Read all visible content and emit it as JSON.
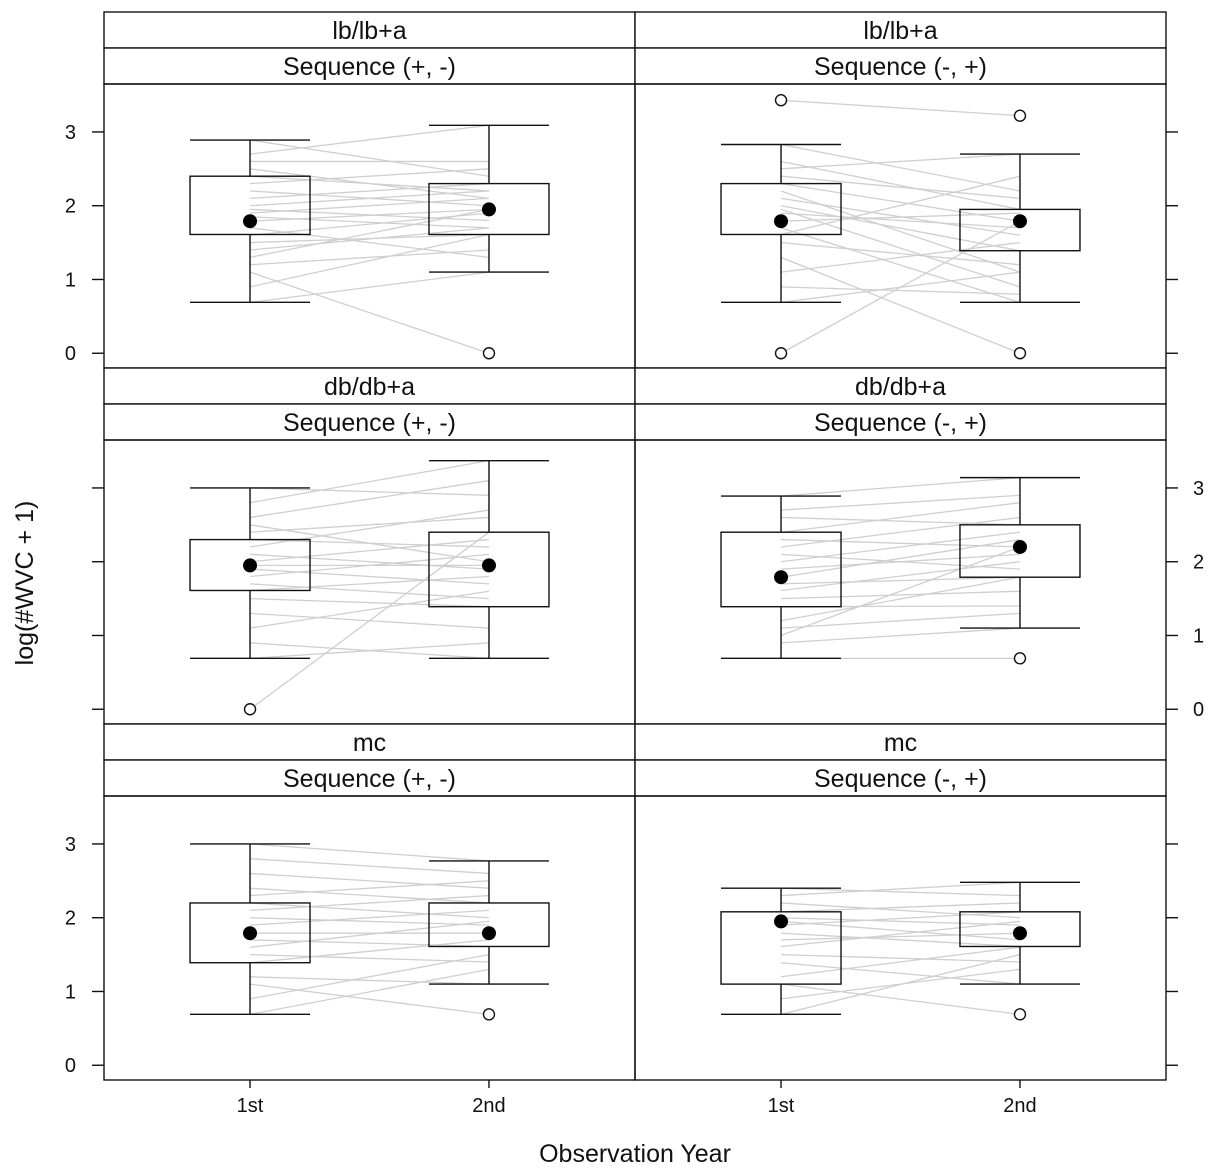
{
  "chart_data": {
    "type": "boxplot",
    "xlabel": "Observation Year",
    "ylabel": "log(#WVC + 1)",
    "ylim": [
      -0.2,
      3.65
    ],
    "yticks": [
      0,
      1,
      2,
      3
    ],
    "categories": [
      "1st",
      "2nd"
    ],
    "panels": [
      {
        "strip_top": "lb/lb+a",
        "strip_bottom": "Sequence (+, -)",
        "boxes": [
          {
            "category": "1st",
            "whisker_low": 0.69,
            "q1": 1.61,
            "median": 1.79,
            "q3": 2.4,
            "whisker_high": 2.89,
            "outliers": []
          },
          {
            "category": "2nd",
            "whisker_low": 1.1,
            "q1": 1.61,
            "median": 1.95,
            "q3": 2.3,
            "whisker_high": 3.09,
            "outliers": [
              0
            ]
          }
        ],
        "pairs": [
          [
            2.89,
            2.4
          ],
          [
            2.7,
            3.09
          ],
          [
            2.6,
            2.6
          ],
          [
            2.4,
            2.2
          ],
          [
            2.3,
            2.5
          ],
          [
            2.2,
            2.0
          ],
          [
            2.1,
            2.3
          ],
          [
            2.0,
            2.2
          ],
          [
            1.95,
            1.8
          ],
          [
            1.9,
            2.1
          ],
          [
            1.85,
            1.7
          ],
          [
            1.79,
            1.95
          ],
          [
            1.6,
            1.9
          ],
          [
            1.5,
            1.61
          ],
          [
            1.4,
            1.7
          ],
          [
            1.3,
            1.95
          ],
          [
            1.2,
            1.4
          ],
          [
            1.1,
            0
          ],
          [
            0.9,
            1.61
          ],
          [
            0.69,
            1.1
          ],
          [
            1.7,
            1.3
          ],
          [
            2.5,
            2.1
          ]
        ]
      },
      {
        "strip_top": "lb/lb+a",
        "strip_bottom": "Sequence (-, +)",
        "boxes": [
          {
            "category": "1st",
            "whisker_low": 0.69,
            "q1": 1.61,
            "median": 1.79,
            "q3": 2.3,
            "whisker_high": 2.83,
            "outliers": [
              3.43,
              0
            ]
          },
          {
            "category": "2nd",
            "whisker_low": 0.69,
            "q1": 1.39,
            "median": 1.79,
            "q3": 1.95,
            "whisker_high": 2.7,
            "outliers": [
              3.22,
              0
            ]
          }
        ],
        "pairs": [
          [
            3.43,
            3.22
          ],
          [
            2.83,
            2.2
          ],
          [
            2.6,
            1.95
          ],
          [
            2.5,
            2.7
          ],
          [
            2.3,
            1.79
          ],
          [
            2.2,
            1.1
          ],
          [
            2.1,
            1.6
          ],
          [
            2.0,
            1.39
          ],
          [
            1.95,
            0.9
          ],
          [
            1.9,
            1.7
          ],
          [
            1.79,
            1.9
          ],
          [
            1.7,
            0.69
          ],
          [
            1.61,
            2.4
          ],
          [
            1.5,
            1.2
          ],
          [
            1.3,
            0
          ],
          [
            1.1,
            1.5
          ],
          [
            0.9,
            0.8
          ],
          [
            0.69,
            1.1
          ],
          [
            0,
            1.79
          ],
          [
            2.4,
            2.1
          ]
        ]
      },
      {
        "strip_top": "db/db+a",
        "strip_bottom": "Sequence (+, -)",
        "boxes": [
          {
            "category": "1st",
            "whisker_low": 0.69,
            "q1": 1.61,
            "median": 1.95,
            "q3": 2.3,
            "whisker_high": 3.0,
            "outliers": [
              0
            ]
          },
          {
            "category": "2nd",
            "whisker_low": 0.69,
            "q1": 1.39,
            "median": 1.95,
            "q3": 2.4,
            "whisker_high": 3.37,
            "outliers": []
          }
        ],
        "pairs": [
          [
            3.0,
            2.9
          ],
          [
            2.8,
            3.37
          ],
          [
            2.6,
            3.1
          ],
          [
            2.4,
            2.6
          ],
          [
            2.3,
            2.2
          ],
          [
            2.2,
            2.7
          ],
          [
            2.1,
            1.9
          ],
          [
            2.0,
            2.3
          ],
          [
            1.95,
            1.95
          ],
          [
            1.9,
            1.7
          ],
          [
            1.8,
            2.1
          ],
          [
            1.7,
            1.5
          ],
          [
            1.61,
            1.8
          ],
          [
            1.5,
            1.39
          ],
          [
            1.3,
            1.1
          ],
          [
            1.1,
            1.6
          ],
          [
            0.9,
            0.69
          ],
          [
            0.69,
            0.9
          ],
          [
            0,
            2.4
          ],
          [
            2.5,
            2.0
          ]
        ]
      },
      {
        "strip_top": "db/db+a",
        "strip_bottom": "Sequence (-, +)",
        "boxes": [
          {
            "category": "1st",
            "whisker_low": 0.69,
            "q1": 1.39,
            "median": 1.79,
            "q3": 2.4,
            "whisker_high": 2.89,
            "outliers": []
          },
          {
            "category": "2nd",
            "whisker_low": 1.1,
            "q1": 1.79,
            "median": 2.2,
            "q3": 2.5,
            "whisker_high": 3.14,
            "outliers": [
              0.69
            ]
          }
        ],
        "pairs": [
          [
            2.89,
            3.14
          ],
          [
            2.7,
            2.9
          ],
          [
            2.6,
            2.5
          ],
          [
            2.4,
            2.8
          ],
          [
            2.3,
            2.2
          ],
          [
            2.2,
            2.6
          ],
          [
            2.1,
            1.9
          ],
          [
            2.0,
            2.4
          ],
          [
            1.9,
            2.1
          ],
          [
            1.79,
            2.3
          ],
          [
            1.7,
            1.79
          ],
          [
            1.61,
            2.0
          ],
          [
            1.5,
            1.6
          ],
          [
            1.39,
            1.4
          ],
          [
            1.2,
            1.79
          ],
          [
            1.1,
            1.3
          ],
          [
            0.9,
            1.1
          ],
          [
            0.69,
            0.69
          ],
          [
            1.0,
            2.2
          ]
        ]
      },
      {
        "strip_top": "mc",
        "strip_bottom": "Sequence (+, -)",
        "boxes": [
          {
            "category": "1st",
            "whisker_low": 0.69,
            "q1": 1.39,
            "median": 1.79,
            "q3": 2.2,
            "whisker_high": 3.0,
            "outliers": []
          },
          {
            "category": "2nd",
            "whisker_low": 1.1,
            "q1": 1.61,
            "median": 1.79,
            "q3": 2.2,
            "whisker_high": 2.77,
            "outliers": [
              0.69
            ]
          }
        ],
        "pairs": [
          [
            3.0,
            2.77
          ],
          [
            2.8,
            2.6
          ],
          [
            2.6,
            2.4
          ],
          [
            2.4,
            2.2
          ],
          [
            2.3,
            2.5
          ],
          [
            2.2,
            2.0
          ],
          [
            2.1,
            2.3
          ],
          [
            2.0,
            1.9
          ],
          [
            1.9,
            2.1
          ],
          [
            1.79,
            1.79
          ],
          [
            1.7,
            1.61
          ],
          [
            1.6,
            1.95
          ],
          [
            1.5,
            1.4
          ],
          [
            1.39,
            1.7
          ],
          [
            1.2,
            1.1
          ],
          [
            1.1,
            0.69
          ],
          [
            0.9,
            1.5
          ],
          [
            0.69,
            1.3
          ]
        ]
      },
      {
        "strip_top": "mc",
        "strip_bottom": "Sequence (-, +)",
        "boxes": [
          {
            "category": "1st",
            "whisker_low": 0.69,
            "q1": 1.1,
            "median": 1.95,
            "q3": 2.08,
            "whisker_high": 2.4,
            "outliers": []
          },
          {
            "category": "2nd",
            "whisker_low": 1.1,
            "q1": 1.61,
            "median": 1.79,
            "q3": 2.08,
            "whisker_high": 2.48,
            "outliers": [
              0.69
            ]
          }
        ],
        "pairs": [
          [
            2.4,
            2.3
          ],
          [
            2.3,
            2.48
          ],
          [
            2.2,
            2.0
          ],
          [
            2.08,
            2.2
          ],
          [
            2.0,
            1.9
          ],
          [
            1.95,
            1.7
          ],
          [
            1.9,
            2.08
          ],
          [
            1.79,
            1.61
          ],
          [
            1.7,
            1.79
          ],
          [
            1.61,
            1.95
          ],
          [
            1.5,
            1.4
          ],
          [
            1.39,
            1.1
          ],
          [
            1.2,
            1.6
          ],
          [
            1.1,
            0.69
          ],
          [
            0.9,
            1.3
          ],
          [
            0.69,
            1.5
          ]
        ]
      }
    ]
  }
}
